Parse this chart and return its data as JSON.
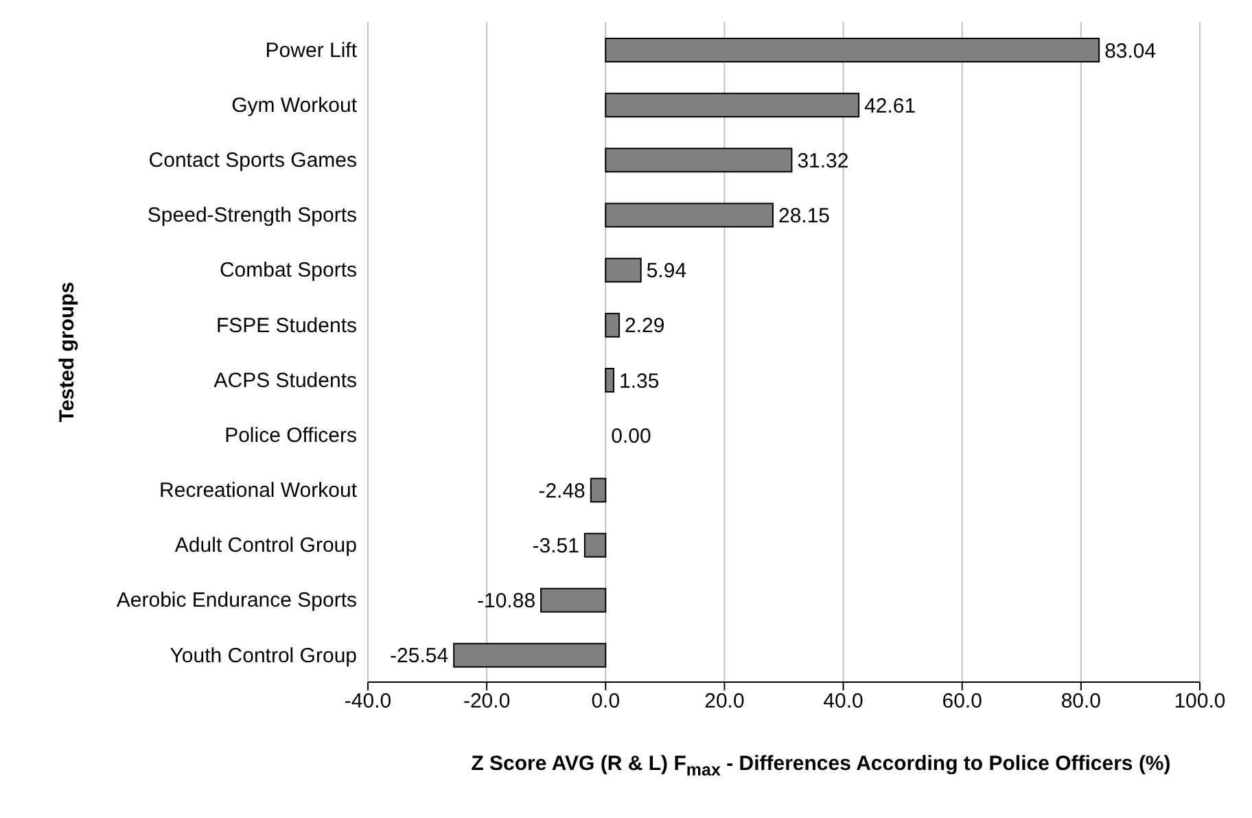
{
  "chart_data": {
    "type": "bar",
    "orientation": "horizontal",
    "categories": [
      "Power Lift",
      "Gym Workout",
      "Contact Sports Games",
      "Speed-Strength Sports",
      "Combat Sports",
      "FSPE Students",
      "ACPS Students",
      "Police Officers",
      "Recreational Workout",
      "Adult Control Group",
      "Aerobic Endurance Sports",
      "Youth Control Group"
    ],
    "values": [
      83.04,
      42.61,
      31.32,
      28.15,
      5.94,
      2.29,
      1.35,
      0,
      -2.48,
      -3.51,
      -10.88,
      -25.54
    ],
    "value_labels": [
      "83.04",
      "42.61",
      "31.32",
      "28.15",
      "5.94",
      "2.29",
      "1.35",
      "0.00",
      "-2.48",
      "-3.51",
      "-10.88",
      "-25.54"
    ],
    "color": "#808080",
    "xlim": [
      -40,
      100
    ],
    "xticks": [
      {
        "value": -40,
        "label": "-40.0"
      },
      {
        "value": -20,
        "label": "-20.0"
      },
      {
        "value": 0,
        "label": "0.0"
      },
      {
        "value": 20,
        "label": "20.0"
      },
      {
        "value": 40,
        "label": "40.0"
      },
      {
        "value": 60,
        "label": "60.0"
      },
      {
        "value": 80,
        "label": "80.0"
      },
      {
        "value": 100,
        "label": "100.0"
      }
    ],
    "xlabel": "Z Score AVG (R & L) F$_{max}$ - Differences According to Police Officers (%)",
    "ylabel": "Tested groups",
    "grid": "x"
  }
}
